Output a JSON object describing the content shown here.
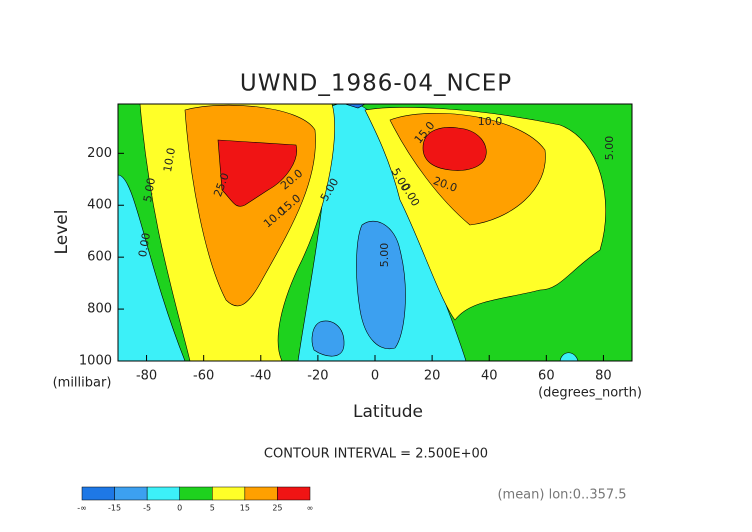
{
  "chart_data": {
    "type": "contour",
    "title": "UWND_1986-04_NCEP",
    "x_label": "Latitude",
    "x_unit": "(degrees_north)",
    "y_label": "Level",
    "y_unit": "(millibar)",
    "xlim": [
      -90,
      90
    ],
    "ylim": [
      1000,
      10
    ],
    "xticks": [
      -80,
      -60,
      -40,
      -20,
      0,
      20,
      40,
      60,
      80
    ],
    "yticks": [
      200,
      400,
      600,
      800,
      1000
    ],
    "contour_interval": "CONTOUR INTERVAL = 2.500E+00",
    "note": "(mean) lon:0..357.5",
    "contour_labels": [
      "10.0",
      "5.00",
      "0.00",
      "25.0",
      "20.0",
      "15.0",
      "10.0",
      "5.00",
      "5.00",
      "5.00",
      "0.00",
      "15.0",
      "10.0",
      "20.0",
      "5.00"
    ],
    "colorbar_ticks": [
      {
        "value": null,
        "label": "-∞"
      },
      -15,
      -5,
      0,
      5,
      15,
      25,
      {
        "value": null,
        "label": "∞"
      }
    ],
    "colorbar_colors": [
      "#1e78e6",
      "#3ca0f0",
      "#3cf0f8",
      "#1ed21e",
      "#ffff28",
      "#ffa000",
      "#f01414"
    ]
  }
}
